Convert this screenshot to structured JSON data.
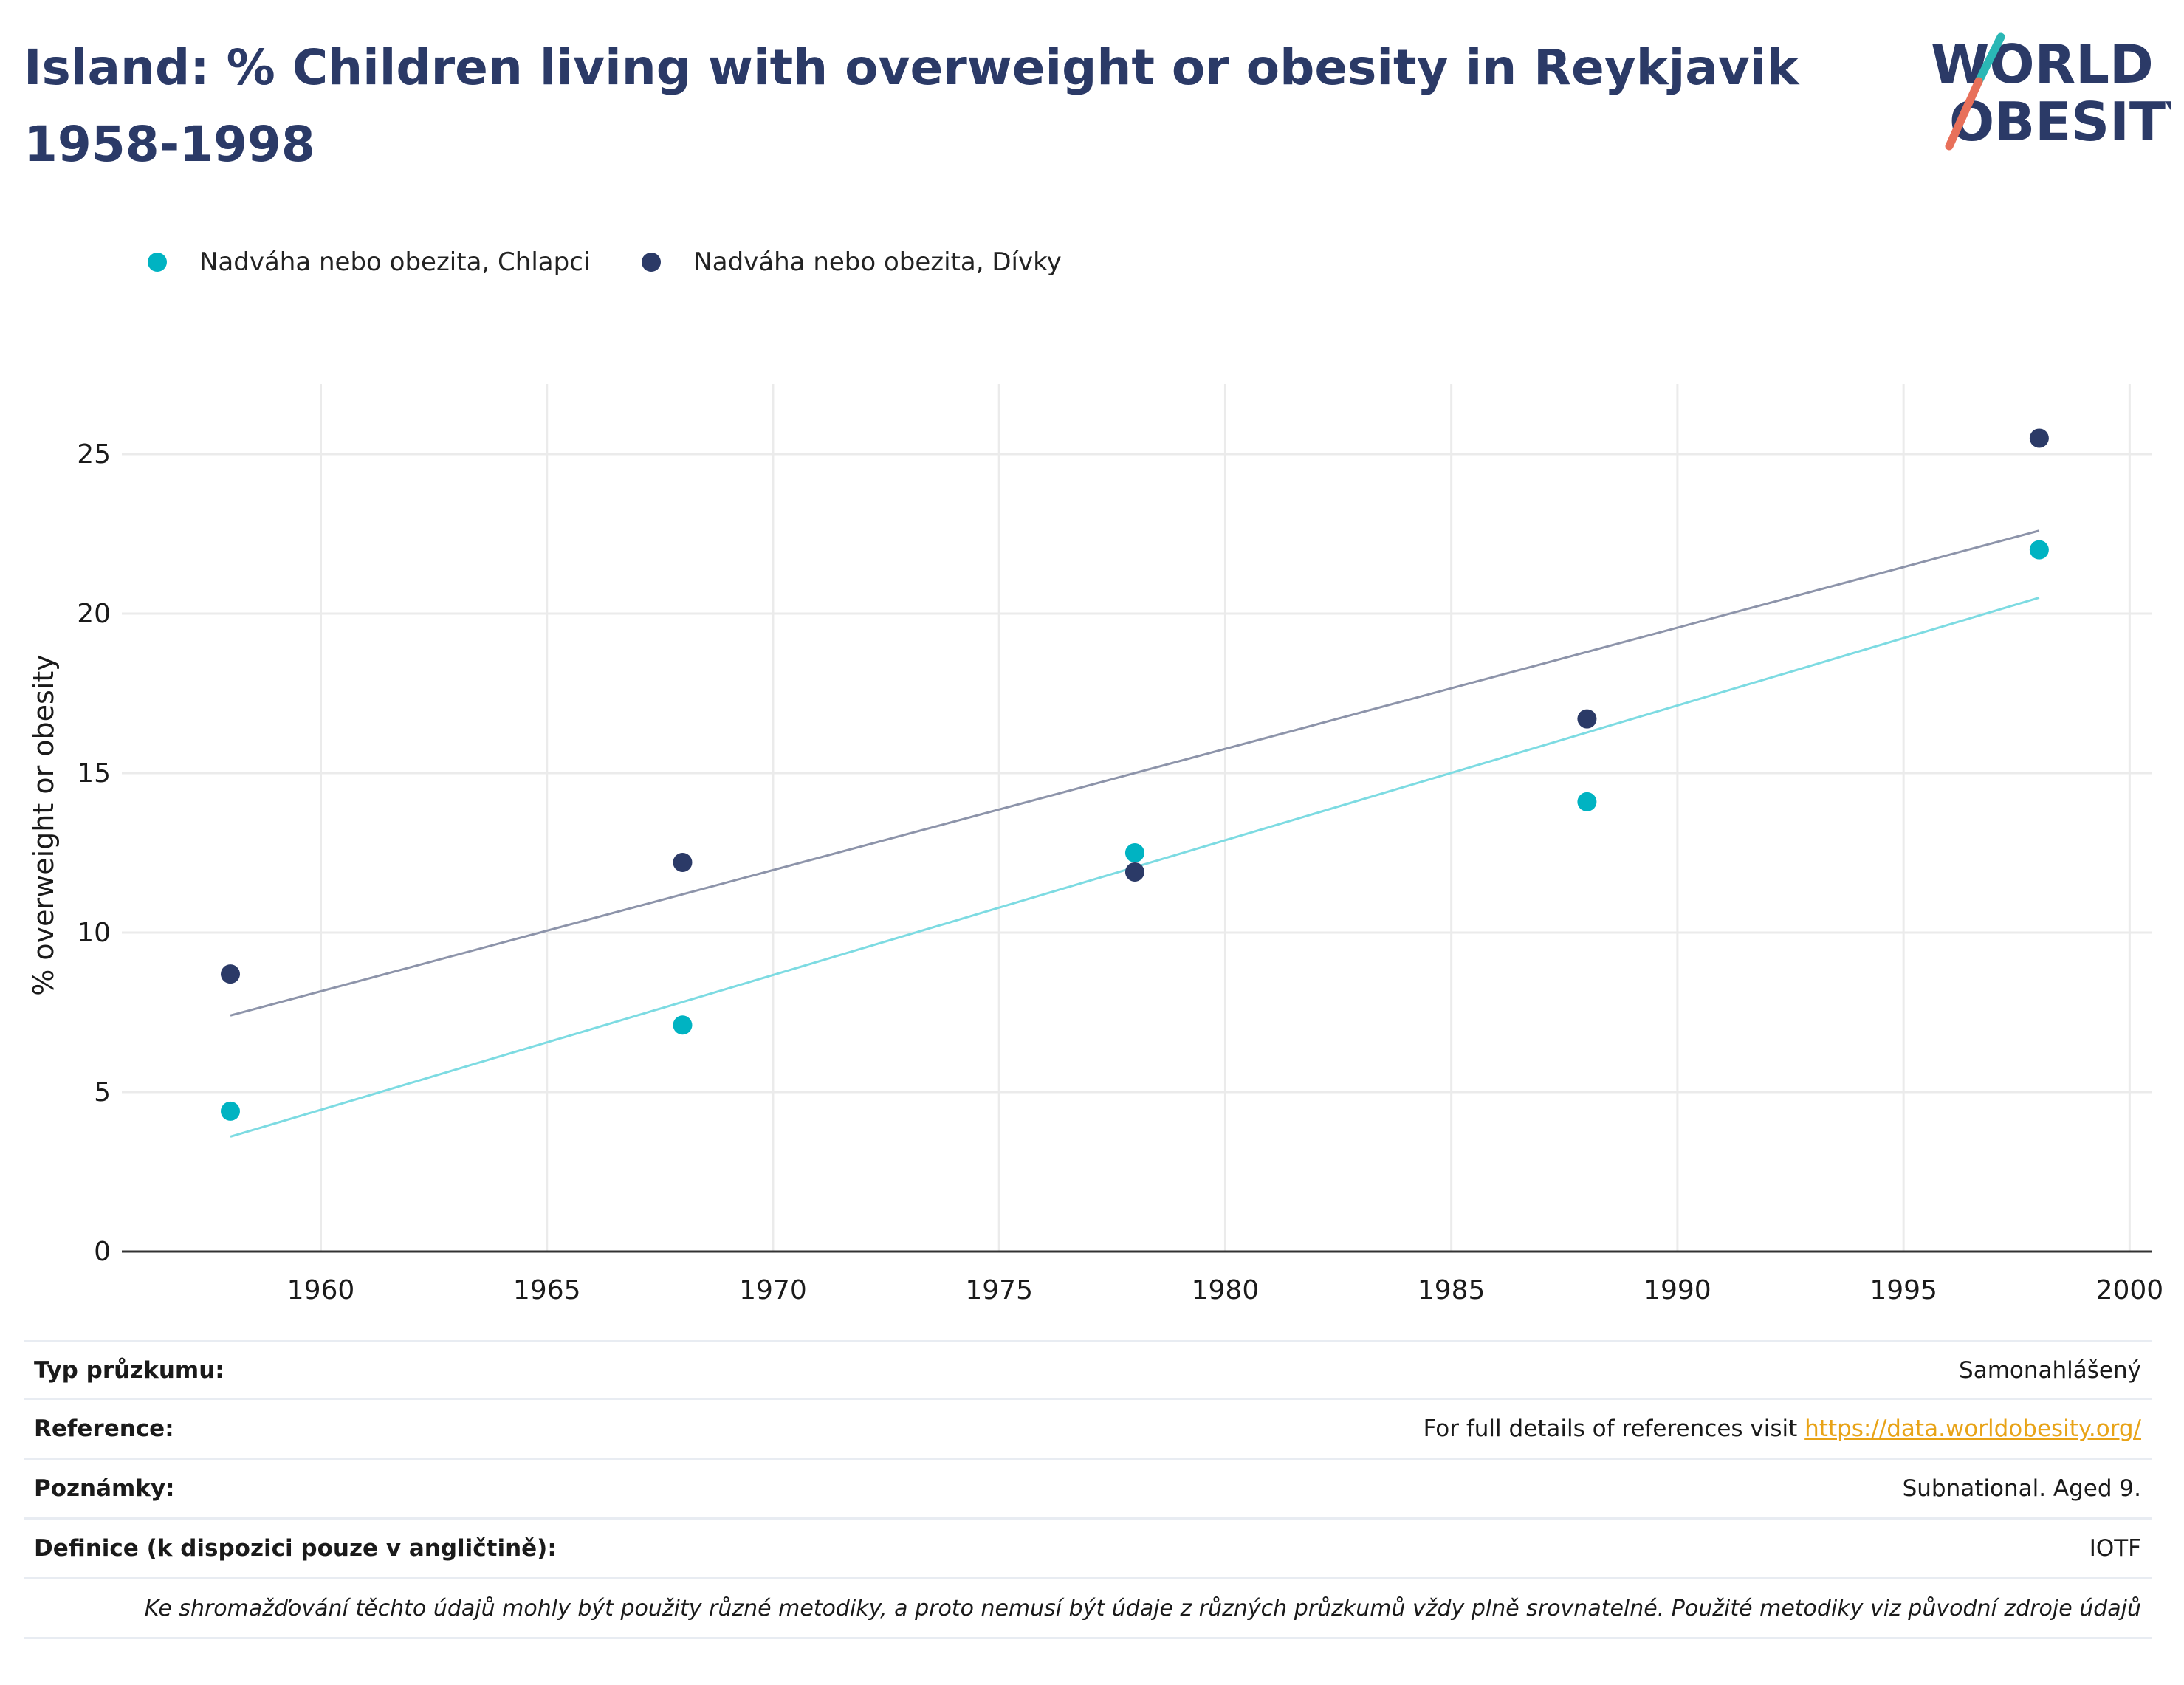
{
  "header": {
    "title": "Island: % Children living with overweight or obesity in Reykjavik 1958-1998",
    "logo_line1": "WORLD",
    "logo_line2": "OBESITY"
  },
  "colors": {
    "boys": "#00b3c2",
    "girls": "#2b3a67",
    "boys_trend": "#7ddbe2",
    "girls_trend": "#8d94aa",
    "grid": "#ebebeb",
    "title": "#2b3a67",
    "link": "#e8a317"
  },
  "chart_data": {
    "type": "scatter",
    "title": "Island: % Children living with overweight or obesity in Reykjavik 1958-1998",
    "xlabel": "",
    "ylabel": "% overweight or obesity",
    "xlim": [
      1955.6,
      2000.5
    ],
    "ylim": [
      0,
      27.2
    ],
    "xticks": [
      1960,
      1965,
      1970,
      1975,
      1980,
      1985,
      1990,
      1995,
      2000
    ],
    "yticks": [
      0,
      5,
      10,
      15,
      20,
      25
    ],
    "grid": true,
    "legend_position": "top-left",
    "series": [
      {
        "name": "Nadváha nebo obezita, Chlapci",
        "color": "#00b3c2",
        "trend_color": "#7ddbe2",
        "x": [
          1958,
          1968,
          1978,
          1988,
          1998
        ],
        "y": [
          4.4,
          7.1,
          12.5,
          14.1,
          22.0
        ],
        "trend": {
          "x": [
            1958,
            1998
          ],
          "y": [
            3.6,
            20.5
          ]
        }
      },
      {
        "name": "Nadváha nebo obezita, Dívky",
        "color": "#2b3a67",
        "trend_color": "#8d94aa",
        "x": [
          1958,
          1968,
          1978,
          1988,
          1998
        ],
        "y": [
          8.7,
          12.2,
          11.9,
          16.7,
          25.5
        ],
        "trend": {
          "x": [
            1958,
            1998
          ],
          "y": [
            7.4,
            22.6
          ]
        }
      }
    ]
  },
  "meta": {
    "survey_type_label": "Typ průzkumu:",
    "survey_type_value": "Samonahlášený",
    "reference_label": "Reference:",
    "reference_text": "For full details of references visit ",
    "reference_link": "https://data.worldobesity.org/",
    "notes_label": "Poznámky:",
    "notes_value": "Subnational. Aged 9.",
    "definition_label": "Definice (k dispozici pouze v angličtině):",
    "definition_value": "IOTF",
    "disclaimer": "Ke shromažďování těchto údajů mohly být použity různé metodiky, a proto nemusí být údaje z různých průzkumů vždy plně srovnatelné. Použité metodiky viz původní zdroje údajů"
  }
}
